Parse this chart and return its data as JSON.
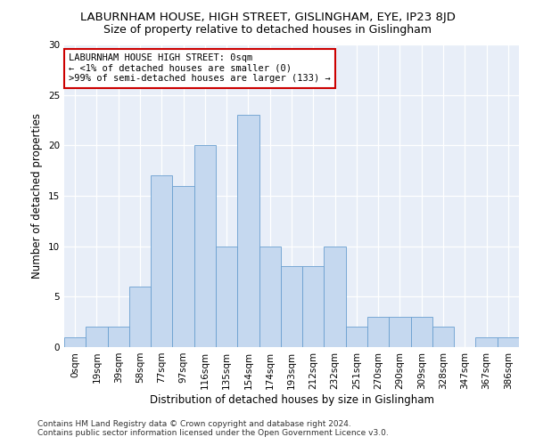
{
  "title": "LABURNHAM HOUSE, HIGH STREET, GISLINGHAM, EYE, IP23 8JD",
  "subtitle": "Size of property relative to detached houses in Gislingham",
  "xlabel": "Distribution of detached houses by size in Gislingham",
  "ylabel": "Number of detached properties",
  "categories": [
    "0sqm",
    "19sqm",
    "39sqm",
    "58sqm",
    "77sqm",
    "97sqm",
    "116sqm",
    "135sqm",
    "154sqm",
    "174sqm",
    "193sqm",
    "212sqm",
    "232sqm",
    "251sqm",
    "270sqm",
    "290sqm",
    "309sqm",
    "328sqm",
    "347sqm",
    "367sqm",
    "386sqm"
  ],
  "values": [
    1,
    2,
    2,
    6,
    17,
    16,
    20,
    10,
    23,
    10,
    8,
    8,
    10,
    2,
    3,
    3,
    3,
    2,
    0,
    1,
    1
  ],
  "bar_color": "#c5d8ef",
  "bar_edge_color": "#6a9fd0",
  "annotation_line1": "LABURNHAM HOUSE HIGH STREET: 0sqm",
  "annotation_line2": "← <1% of detached houses are smaller (0)",
  "annotation_line3": ">99% of semi-detached houses are larger (133) →",
  "annotation_box_color": "#ffffff",
  "annotation_box_edge_color": "#cc0000",
  "ylim": [
    0,
    30
  ],
  "yticks": [
    0,
    5,
    10,
    15,
    20,
    25,
    30
  ],
  "background_color": "#e8eef8",
  "footer_line1": "Contains HM Land Registry data © Crown copyright and database right 2024.",
  "footer_line2": "Contains public sector information licensed under the Open Government Licence v3.0.",
  "title_fontsize": 9.5,
  "subtitle_fontsize": 9,
  "annotation_fontsize": 7.5,
  "axis_label_fontsize": 8.5,
  "tick_fontsize": 7.5,
  "footer_fontsize": 6.5
}
